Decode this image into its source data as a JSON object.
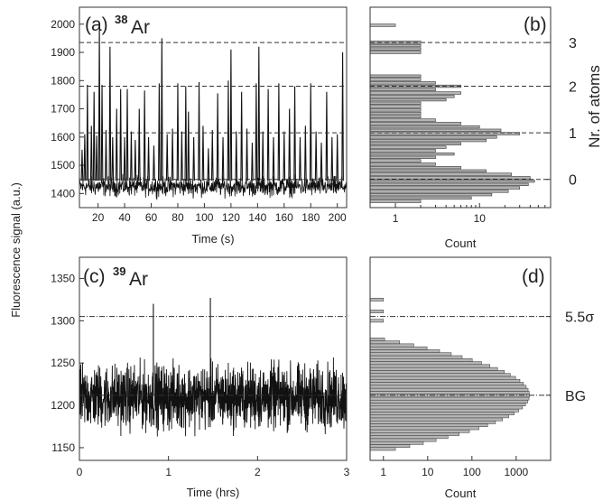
{
  "figure": {
    "ylabel_shared": "Fluorescence signal (a.u.)",
    "right_axis_label": "Nr. of atoms"
  },
  "chart_data": [
    {
      "panel": "a",
      "type": "line",
      "label": "(a)",
      "isotope": {
        "mass": "38",
        "symbol": "Ar"
      },
      "xlabel": "Time (s)",
      "ylabel": "Fluorescence signal (a.u.)",
      "xlim": [
        6,
        207
      ],
      "ylim": [
        1350,
        2060
      ],
      "xticks": [
        20,
        40,
        60,
        80,
        100,
        120,
        140,
        160,
        180,
        200
      ],
      "yticks": [
        1400,
        1500,
        1600,
        1700,
        1800,
        1900,
        2000
      ],
      "baseline": 1445,
      "noise_band": [
        1375,
        1475
      ],
      "atom_levels": [
        1450,
        1615,
        1780,
        1935
      ],
      "spikes": [
        {
          "t": 8,
          "y": 1555
        },
        {
          "t": 10,
          "y": 1610
        },
        {
          "t": 12,
          "y": 1785
        },
        {
          "t": 15,
          "y": 1640
        },
        {
          "t": 17,
          "y": 1760
        },
        {
          "t": 19,
          "y": 1605
        },
        {
          "t": 21,
          "y": 1985
        },
        {
          "t": 23,
          "y": 1785
        },
        {
          "t": 26,
          "y": 1625
        },
        {
          "t": 29,
          "y": 1920
        },
        {
          "t": 31,
          "y": 1600
        },
        {
          "t": 34,
          "y": 1700
        },
        {
          "t": 37,
          "y": 1770
        },
        {
          "t": 40,
          "y": 1600
        },
        {
          "t": 42,
          "y": 1770
        },
        {
          "t": 45,
          "y": 1620
        },
        {
          "t": 48,
          "y": 1590
        },
        {
          "t": 51,
          "y": 1700
        },
        {
          "t": 55,
          "y": 1765
        },
        {
          "t": 58,
          "y": 1600
        },
        {
          "t": 62,
          "y": 1570
        },
        {
          "t": 66,
          "y": 1790
        },
        {
          "t": 68,
          "y": 1950
        },
        {
          "t": 72,
          "y": 1610
        },
        {
          "t": 76,
          "y": 1630
        },
        {
          "t": 80,
          "y": 1790
        },
        {
          "t": 83,
          "y": 1620
        },
        {
          "t": 86,
          "y": 1780
        },
        {
          "t": 88,
          "y": 1690
        },
        {
          "t": 92,
          "y": 1600
        },
        {
          "t": 96,
          "y": 1795
        },
        {
          "t": 99,
          "y": 1640
        },
        {
          "t": 103,
          "y": 1560
        },
        {
          "t": 106,
          "y": 1625
        },
        {
          "t": 110,
          "y": 1755
        },
        {
          "t": 114,
          "y": 1600
        },
        {
          "t": 118,
          "y": 1800
        },
        {
          "t": 120,
          "y": 1910
        },
        {
          "t": 124,
          "y": 1620
        },
        {
          "t": 128,
          "y": 1760
        },
        {
          "t": 132,
          "y": 1630
        },
        {
          "t": 136,
          "y": 1580
        },
        {
          "t": 139,
          "y": 1790
        },
        {
          "t": 141,
          "y": 1920
        },
        {
          "t": 144,
          "y": 1620
        },
        {
          "t": 148,
          "y": 1770
        },
        {
          "t": 152,
          "y": 1600
        },
        {
          "t": 156,
          "y": 1790
        },
        {
          "t": 160,
          "y": 1620
        },
        {
          "t": 164,
          "y": 1700
        },
        {
          "t": 168,
          "y": 1780
        },
        {
          "t": 172,
          "y": 1600
        },
        {
          "t": 176,
          "y": 1640
        },
        {
          "t": 180,
          "y": 1790
        },
        {
          "t": 184,
          "y": 1620
        },
        {
          "t": 188,
          "y": 1580
        },
        {
          "t": 192,
          "y": 1760
        },
        {
          "t": 196,
          "y": 1600
        },
        {
          "t": 200,
          "y": 1610
        },
        {
          "t": 204,
          "y": 1900
        }
      ]
    },
    {
      "panel": "b",
      "type": "bar",
      "orientation": "horizontal",
      "label": "(b)",
      "xlabel": "Count",
      "xscale": "log",
      "xlim": [
        0.5,
        70
      ],
      "xticks": [
        1,
        10
      ],
      "ylim": [
        1350,
        2060
      ],
      "bin_width": 12,
      "bins": [
        {
          "y": 1372,
          "count": 2
        },
        {
          "y": 1384,
          "count": 8
        },
        {
          "y": 1396,
          "count": 14
        },
        {
          "y": 1408,
          "count": 22
        },
        {
          "y": 1420,
          "count": 30
        },
        {
          "y": 1432,
          "count": 38
        },
        {
          "y": 1444,
          "count": 45
        },
        {
          "y": 1456,
          "count": 40
        },
        {
          "y": 1468,
          "count": 24
        },
        {
          "y": 1480,
          "count": 12
        },
        {
          "y": 1492,
          "count": 6
        },
        {
          "y": 1504,
          "count": 3
        },
        {
          "y": 1516,
          "count": 2
        },
        {
          "y": 1528,
          "count": 3
        },
        {
          "y": 1540,
          "count": 5
        },
        {
          "y": 1552,
          "count": 3
        },
        {
          "y": 1564,
          "count": 4
        },
        {
          "y": 1576,
          "count": 6
        },
        {
          "y": 1588,
          "count": 12
        },
        {
          "y": 1600,
          "count": 16
        },
        {
          "y": 1612,
          "count": 30
        },
        {
          "y": 1624,
          "count": 18
        },
        {
          "y": 1636,
          "count": 10
        },
        {
          "y": 1648,
          "count": 6
        },
        {
          "y": 1660,
          "count": 3
        },
        {
          "y": 1672,
          "count": 2
        },
        {
          "y": 1684,
          "count": 2
        },
        {
          "y": 1696,
          "count": 2
        },
        {
          "y": 1708,
          "count": 2
        },
        {
          "y": 1720,
          "count": 2
        },
        {
          "y": 1732,
          "count": 4
        },
        {
          "y": 1744,
          "count": 5
        },
        {
          "y": 1756,
          "count": 6
        },
        {
          "y": 1768,
          "count": 3
        },
        {
          "y": 1780,
          "count": 6
        },
        {
          "y": 1792,
          "count": 3
        },
        {
          "y": 1804,
          "count": 2
        },
        {
          "y": 1816,
          "count": 2
        },
        {
          "y": 1900,
          "count": 2
        },
        {
          "y": 1912,
          "count": 2
        },
        {
          "y": 1924,
          "count": 2
        },
        {
          "y": 1936,
          "count": 2
        },
        {
          "y": 1996,
          "count": 1
        }
      ],
      "right_axis": {
        "label": "Nr. of atoms",
        "ticks": [
          {
            "value": 1450,
            "text": "0"
          },
          {
            "value": 1615,
            "text": "1"
          },
          {
            "value": 1780,
            "text": "2"
          },
          {
            "value": 1935,
            "text": "3"
          }
        ]
      }
    },
    {
      "panel": "c",
      "type": "line",
      "label": "(c)",
      "isotope": {
        "mass": "39",
        "symbol": "Ar"
      },
      "xlabel": "Time (hrs)",
      "ylabel": "Fluorescence signal (a.u.)",
      "xlim": [
        0,
        3
      ],
      "ylim": [
        1135,
        1375
      ],
      "xticks": [
        0,
        1,
        2,
        3
      ],
      "yticks": [
        1150,
        1200,
        1250,
        1300,
        1350
      ],
      "baseline": 1212,
      "noise_band": [
        1155,
        1265
      ],
      "thresholds": [
        1305,
        1212
      ],
      "spikes": [
        {
          "t": 0.83,
          "y": 1320
        },
        {
          "t": 1.47,
          "y": 1327
        }
      ]
    },
    {
      "panel": "d",
      "type": "bar",
      "orientation": "horizontal",
      "label": "(d)",
      "xlabel": "Count",
      "xscale": "log",
      "xlim": [
        0.5,
        6000
      ],
      "xticks": [
        1,
        10,
        100,
        1000
      ],
      "ylim": [
        1135,
        1375
      ],
      "bin_width": 3.5,
      "gaussian": {
        "peak": 2000,
        "center": 1212,
        "sigma": 17,
        "from": 1145,
        "to": 1278
      },
      "outlier_bins": [
        {
          "y": 1300,
          "count": 1
        },
        {
          "y": 1311,
          "count": 1
        },
        {
          "y": 1325,
          "count": 1
        }
      ],
      "right_axis": {
        "ticks": [
          {
            "value": 1305,
            "text": "5.5σ"
          },
          {
            "value": 1212,
            "text": "BG"
          }
        ]
      }
    }
  ]
}
